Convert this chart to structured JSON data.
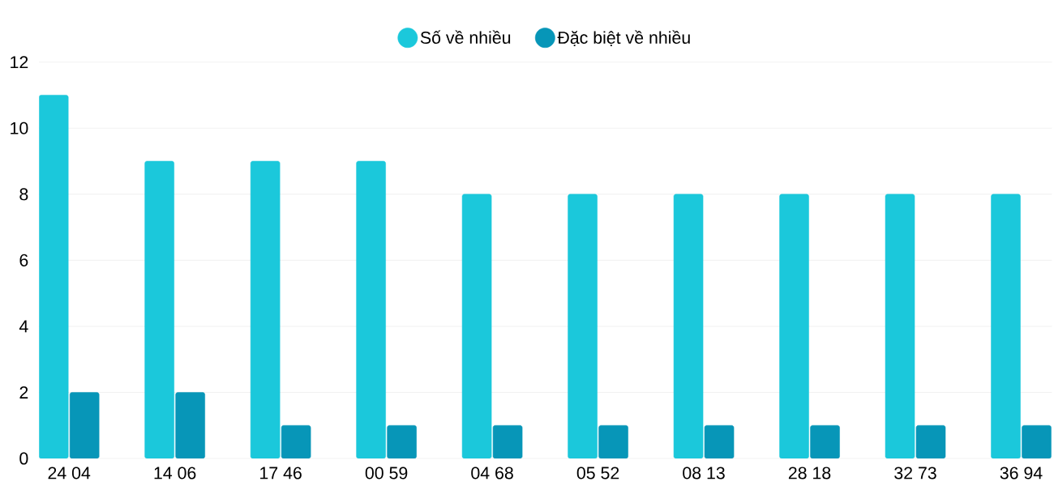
{
  "chart_data": {
    "type": "bar",
    "categories": [
      "24 04",
      "14 06",
      "17 46",
      "00 59",
      "04 68",
      "05 52",
      "08 13",
      "28 18",
      "32 73",
      "36 94"
    ],
    "series": [
      {
        "name": "Số về nhiều",
        "color": "#1bc8db",
        "values": [
          11,
          9,
          9,
          9,
          8,
          8,
          8,
          8,
          8,
          8
        ]
      },
      {
        "name": "Đặc biệt về nhiều",
        "color": "#0796b8",
        "values": [
          2,
          2,
          1,
          1,
          1,
          1,
          1,
          1,
          1,
          1
        ]
      }
    ],
    "ylim": [
      0,
      12
    ],
    "yticks": [
      0,
      2,
      4,
      6,
      8,
      10,
      12
    ],
    "grid": "y",
    "legend": "top"
  }
}
